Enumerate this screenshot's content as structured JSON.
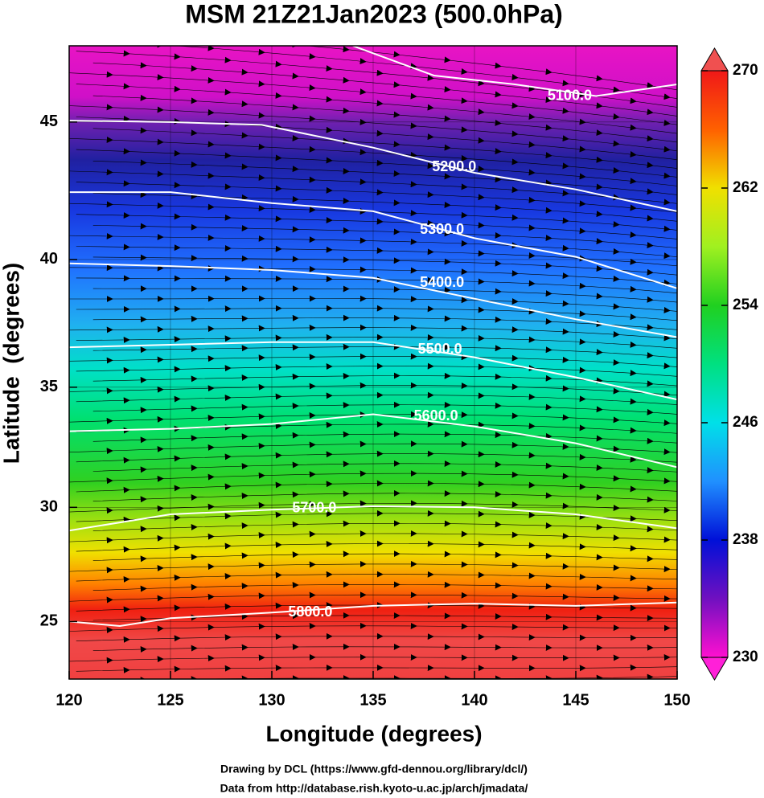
{
  "map": {
    "title": "MSM 21Z21Jan2023 (500.0hPa)",
    "xlabel": "Longitude (degrees)",
    "ylabel": "Latitude  (degrees)",
    "xlim": [
      120,
      150
    ],
    "ylim": [
      22.4,
      47.6
    ],
    "xticks": [
      120,
      125,
      130,
      135,
      140,
      145,
      150
    ],
    "yticks": [
      25,
      30,
      35,
      40,
      45
    ],
    "grid": true,
    "contours": [
      {
        "label": "5100.0",
        "lon": [
          134,
          138,
          142,
          146,
          150
        ],
        "lat": [
          47.6,
          46.6,
          46.3,
          45.9,
          46.3
        ],
        "label_lon": 144.7,
        "label_lat": 45.9
      },
      {
        "label": "5200.0",
        "lon": [
          120,
          125,
          129.5,
          135,
          140,
          145,
          150
        ],
        "lat": [
          45.05,
          45.0,
          44.9,
          44.1,
          43.2,
          42.6,
          41.8
        ],
        "label_lon": 139,
        "label_lat": 43.4
      },
      {
        "label": "5300.0",
        "lon": [
          120,
          125,
          130,
          135,
          140,
          145,
          150
        ],
        "lat": [
          42.5,
          42.5,
          42.1,
          41.8,
          40.8,
          40.1,
          38.9
        ],
        "label_lon": 138.4,
        "label_lat": 41.1
      },
      {
        "label": "5400.0",
        "lon": [
          120,
          125,
          130,
          135,
          140,
          145,
          150
        ],
        "lat": [
          39.85,
          39.75,
          39.6,
          39.3,
          38.5,
          37.7,
          37.0
        ],
        "label_lon": 138.4,
        "label_lat": 39.1
      },
      {
        "label": "5500.0",
        "lon": [
          120,
          125,
          130,
          135,
          140,
          145,
          150
        ],
        "lat": [
          36.6,
          36.7,
          36.8,
          36.8,
          36.2,
          35.4,
          34.5
        ],
        "label_lon": 138.3,
        "label_lat": 36.5
      },
      {
        "label": "5600.0",
        "lon": [
          120,
          125,
          130,
          135,
          140,
          145,
          150
        ],
        "lat": [
          33.2,
          33.3,
          33.5,
          33.9,
          33.4,
          32.7,
          31.7
        ],
        "label_lon": 138.1,
        "label_lat": 33.8
      },
      {
        "label": "5700.0",
        "lon": [
          120,
          125,
          130,
          135,
          140,
          145,
          150
        ],
        "lat": [
          29.0,
          29.7,
          29.9,
          30.05,
          30.0,
          29.7,
          29.1
        ],
        "label_lon": 132.1,
        "label_lat": 29.95
      },
      {
        "label": "5800.0",
        "lon": [
          120,
          122.5,
          125,
          130,
          135,
          140,
          145,
          150
        ],
        "lat": [
          25.0,
          24.8,
          25.15,
          25.4,
          25.7,
          25.8,
          25.7,
          25.85
        ],
        "label_lon": 131.9,
        "label_lat": 25.4
      }
    ],
    "colorbar": {
      "lim": [
        230,
        270
      ],
      "ticks": [
        230,
        238,
        246,
        254,
        262,
        270
      ]
    },
    "credits": [
      "Drawing by DCL (https://www.gfd-dennou.org/library/dcl/)",
      "Data from http://database.rish.kyoto-u.ac.jp/arch/jmadata/"
    ]
  }
}
